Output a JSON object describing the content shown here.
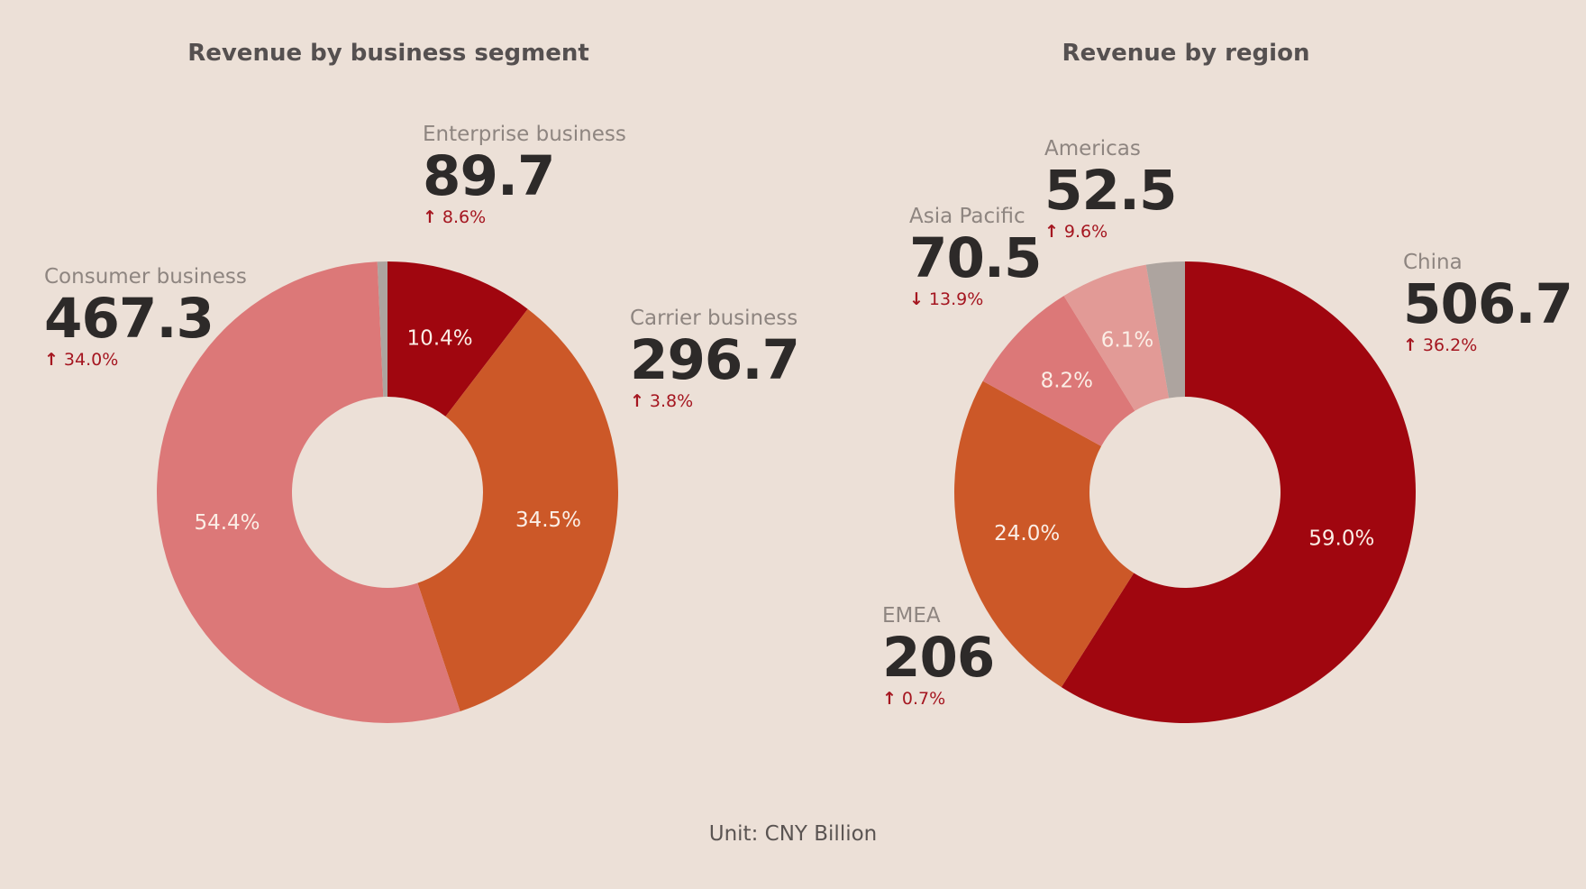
{
  "unit_note": "Unit: CNY Billion",
  "chart_data": [
    {
      "type": "pie",
      "title": "Revenue by business segment",
      "donut": true,
      "categories": [
        "Enterprise business",
        "Carrier business",
        "Consumer business"
      ],
      "values": [
        89.7,
        296.7,
        467.3
      ],
      "value_labels": [
        "89.7",
        "296.7",
        "467.3"
      ],
      "percent_labels": [
        "10.4%",
        "34.5%",
        "54.4%"
      ],
      "percents": [
        10.4,
        34.5,
        54.4,
        0.7
      ],
      "changes": [
        "8.6%",
        "3.8%",
        "34.0%"
      ],
      "change_directions": [
        "up",
        "up",
        "up"
      ],
      "colors": [
        "#a0060f",
        "#cc5828",
        "#dc7878",
        "#ada49f"
      ]
    },
    {
      "type": "pie",
      "title": "Revenue by region",
      "donut": true,
      "categories": [
        "China",
        "EMEA",
        "Asia Pacific",
        "Americas"
      ],
      "values": [
        506.7,
        206,
        70.5,
        52.5
      ],
      "value_labels": [
        "506.7",
        "206",
        "70.5",
        "52.5"
      ],
      "percent_labels": [
        "59.0%",
        "24.0%",
        "8.2%",
        "6.1%"
      ],
      "percents": [
        59.0,
        24.0,
        8.2,
        6.1,
        2.7
      ],
      "changes": [
        "36.2%",
        "0.7%",
        "13.9%",
        "9.6%"
      ],
      "change_directions": [
        "up",
        "up",
        "down",
        "up"
      ],
      "colors": [
        "#a0060f",
        "#cc5828",
        "#dc7878",
        "#e29a96",
        "#ada49f"
      ]
    }
  ]
}
